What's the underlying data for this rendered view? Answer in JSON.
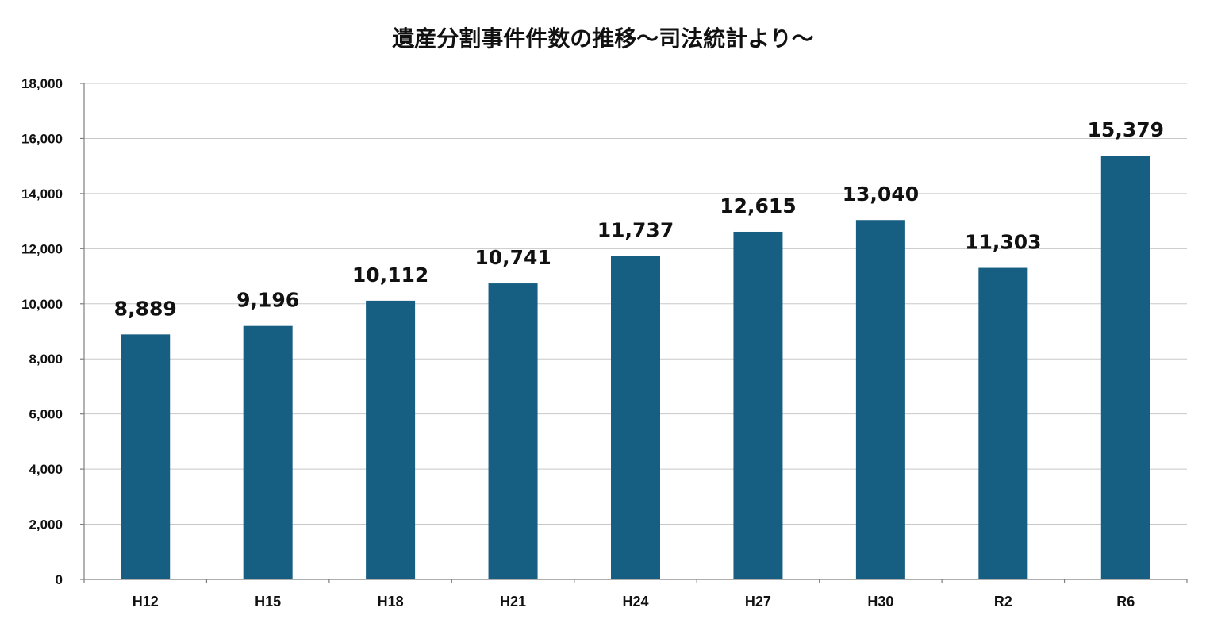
{
  "chart_data": {
    "type": "bar",
    "title": "遺産分割事件件数の推移～司法統計より～",
    "xlabel": "",
    "ylabel": "",
    "categories": [
      "H12",
      "H15",
      "H18",
      "H21",
      "H24",
      "H27",
      "H30",
      "R2",
      "R6"
    ],
    "values": [
      8889,
      9196,
      10112,
      10741,
      11737,
      12615,
      13040,
      11303,
      15379
    ],
    "data_labels": [
      "8,889",
      "9,196",
      "10,112",
      "10,741",
      "11,737",
      "12,615",
      "13,040",
      "11,303",
      "15,379"
    ],
    "ylim": [
      0,
      18000
    ],
    "yticks": [
      0,
      2000,
      4000,
      6000,
      8000,
      10000,
      12000,
      14000,
      16000,
      18000
    ],
    "ytick_labels": [
      "0",
      "2,000",
      "4,000",
      "6,000",
      "8,000",
      "10,000",
      "12,000",
      "14,000",
      "16,000",
      "18,000"
    ],
    "grid": true,
    "legend": "none",
    "colors": {
      "bar": "#175f82",
      "grid": "#c8c8c8",
      "axis": "#7f7f7f",
      "text": "#111111"
    }
  }
}
